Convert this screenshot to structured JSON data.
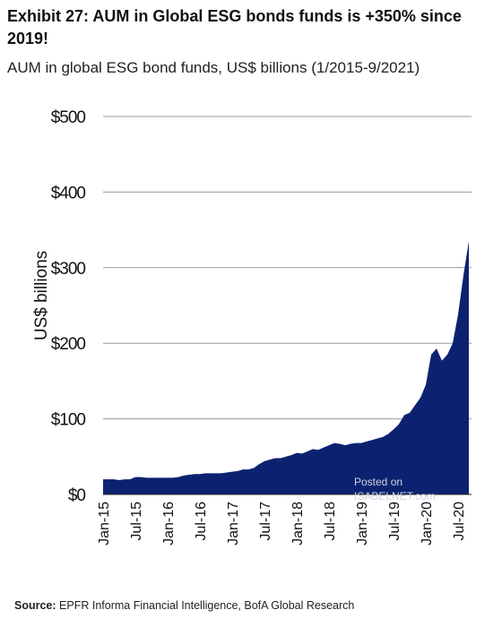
{
  "chart_data": {
    "type": "area",
    "title": "Exhibit 27: AUM in Global ESG bonds funds is +350% since 2019!",
    "subtitle": "AUM in global ESG bond funds, US$ billions (1/2015-9/2021)",
    "y_label": "US$ billions",
    "source_label": "Source:",
    "source_text": "EPFR Informa Financial Intelligence, BofA Global Research",
    "watermark": [
      "Posted on",
      "ISABELNET.com"
    ],
    "color": "#0c2270",
    "grid": true,
    "ylim": [
      0,
      500
    ],
    "yticks": [
      {
        "value": 0,
        "label": "$0"
      },
      {
        "value": 100,
        "label": "$100"
      },
      {
        "value": 200,
        "label": "$200"
      },
      {
        "value": 300,
        "label": "$300"
      },
      {
        "value": 400,
        "label": "$400"
      },
      {
        "value": 500,
        "label": "$500"
      }
    ],
    "categories": [
      "Jan-15",
      null,
      null,
      null,
      null,
      null,
      "Jul-15",
      null,
      null,
      null,
      null,
      null,
      "Jan-16",
      null,
      null,
      null,
      null,
      null,
      "Jul-16",
      null,
      null,
      null,
      null,
      null,
      "Jan-17",
      null,
      null,
      null,
      null,
      null,
      "Jul-17",
      null,
      null,
      null,
      null,
      null,
      "Jan-18",
      null,
      null,
      null,
      null,
      null,
      "Jul-18",
      null,
      null,
      null,
      null,
      null,
      "Jan-19",
      null,
      null,
      null,
      null,
      null,
      "Jul-19",
      null,
      null,
      null,
      null,
      null,
      "Jan-20",
      null,
      null,
      null,
      null,
      null,
      "Jul-20",
      null,
      null
    ],
    "values": [
      20,
      20,
      20,
      19,
      20,
      20,
      23,
      23,
      22,
      22,
      22,
      22,
      22,
      22,
      23,
      25,
      26,
      27,
      27,
      28,
      28,
      28,
      28,
      29,
      30,
      31,
      33,
      33,
      35,
      40,
      44,
      46,
      48,
      48,
      50,
      52,
      55,
      54,
      57,
      60,
      59,
      62,
      65,
      68,
      67,
      65,
      67,
      68,
      68,
      70,
      72,
      74,
      76,
      80,
      86,
      93,
      105,
      108,
      118,
      128,
      145,
      185,
      193,
      177,
      185,
      200,
      238,
      290,
      335
    ]
  }
}
